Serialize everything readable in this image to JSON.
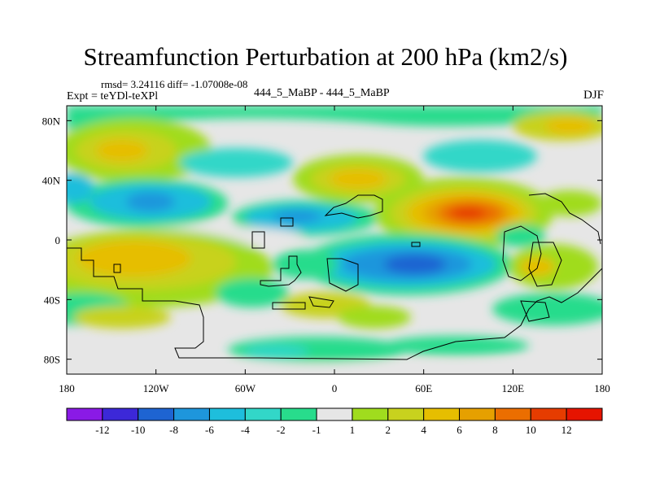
{
  "figure": {
    "title": "Streamfunction Perturbation at 200 hPa (km2/s)",
    "stats": "rmsd= 3.24116  diff= -1.07008e-08",
    "expt": "Expt = teYDl-teXPl",
    "runs": "444_5_MaBP - 444_5_MaBP",
    "season": "DJF"
  },
  "chart_data": {
    "type": "heatmap",
    "title": "Streamfunction Perturbation at 200 hPa (km2/s)",
    "subtitle": "444_5_MaBP - 444_5_MaBP",
    "units": "km2/s",
    "season": "DJF",
    "xlabel": "",
    "ylabel": "",
    "xlim": [
      -180,
      180
    ],
    "ylim": [
      -90,
      90
    ],
    "x_ticks": [
      {
        "value": -180,
        "label": "180"
      },
      {
        "value": -120,
        "label": "120W"
      },
      {
        "value": -60,
        "label": "60W"
      },
      {
        "value": 0,
        "label": "0"
      },
      {
        "value": 60,
        "label": "60E"
      },
      {
        "value": 120,
        "label": "120E"
      },
      {
        "value": 180,
        "label": "180"
      }
    ],
    "y_ticks": [
      {
        "value": 80,
        "label": "80N"
      },
      {
        "value": 40,
        "label": "40N"
      },
      {
        "value": 0,
        "label": "0"
      },
      {
        "value": -40,
        "label": "40S"
      },
      {
        "value": -80,
        "label": "80S"
      }
    ],
    "colorbar": {
      "colors": [
        "#8a1ae6",
        "#3c28d8",
        "#1e64d2",
        "#1e96dc",
        "#1ebedc",
        "#32d7c8",
        "#28dc8c",
        "#e6e6e6",
        "#a0dc1e",
        "#c8d21e",
        "#e6be00",
        "#e6a000",
        "#eb6e00",
        "#e63c00",
        "#e61400"
      ],
      "labels": [
        "-12",
        "-10",
        "-8",
        "-6",
        "-4",
        "-2",
        "-1",
        "1",
        "2",
        "4",
        "6",
        "8",
        "10",
        "12"
      ],
      "extends": "both"
    },
    "features": [
      {
        "name": "southern-hemisphere-high",
        "lon": -140,
        "lat": -15,
        "value": 5
      },
      {
        "name": "indian-ocean-low",
        "lon": 60,
        "lat": -18,
        "value": -9
      },
      {
        "name": "tropical-high-asia",
        "lon": 85,
        "lat": 18,
        "value": 11
      },
      {
        "name": "north-pacific-high",
        "lon": -160,
        "lat": 63,
        "value": 4
      },
      {
        "name": "north-pacific-low",
        "lon": -120,
        "lat": 25,
        "value": -7
      },
      {
        "name": "north-atlantic-high",
        "lon": 10,
        "lat": 45,
        "value": 5
      },
      {
        "name": "africa-low",
        "lon": -20,
        "lat": 15,
        "value": -5
      },
      {
        "name": "southern-ocean-low",
        "lon": -40,
        "lat": -70,
        "value": -2
      }
    ]
  }
}
